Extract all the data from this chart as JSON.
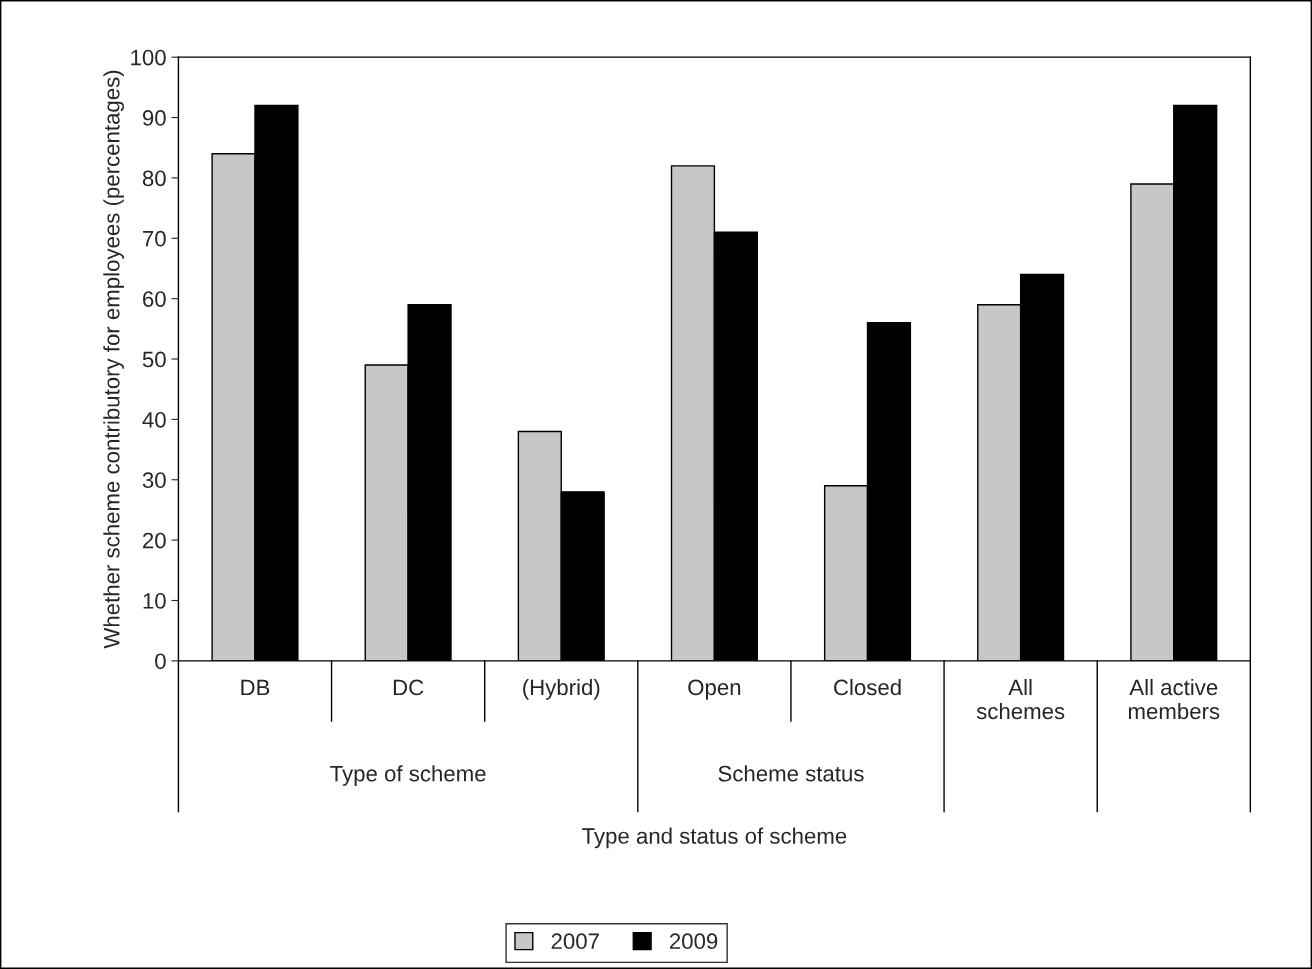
{
  "chart_data": {
    "type": "bar",
    "xlabel": "Type and status of scheme",
    "ylabel": "Whether scheme contributory for employees (percentages)",
    "categories": [
      "DB",
      "DC",
      "(Hybrid)",
      "Open",
      "Closed",
      "All schemes",
      "All active members"
    ],
    "series": [
      {
        "name": "2007",
        "color": "#c6c7c9",
        "values": [
          84,
          49,
          38,
          82,
          29,
          59,
          79
        ]
      },
      {
        "name": "2009",
        "color": "#000000",
        "values": [
          92,
          59,
          28,
          71,
          56,
          64,
          92
        ]
      }
    ],
    "annotations": [
      "Type of scheme",
      "Scheme status"
    ],
    "ylim": [
      0,
      100
    ],
    "yticks": [
      0,
      10,
      20,
      30,
      40,
      50,
      60,
      70,
      80,
      90,
      100
    ],
    "grid": false,
    "legend": "bottom"
  }
}
